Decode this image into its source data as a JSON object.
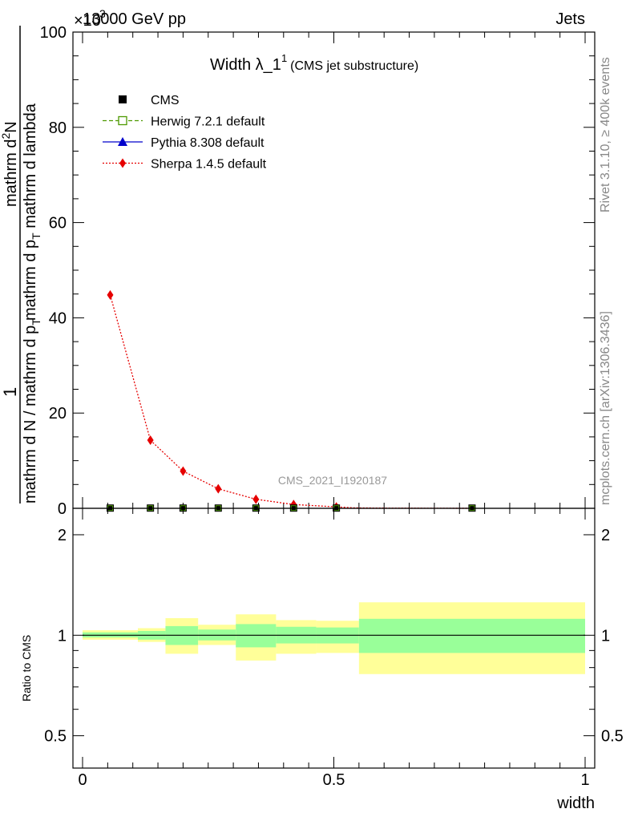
{
  "header": {
    "energy": "13000 GeV pp",
    "process": "Jets",
    "exponent": "×10",
    "exponent_power": "3"
  },
  "side": {
    "rivet": "Rivet 3.1.10, ≥ 400k events",
    "mcplots": "mcplots.cern.ch [arXiv:1306.3436]"
  },
  "chart_data": {
    "title": "Width λ_1",
    "title_sup": "1",
    "title_note": "(CMS jet substructure)",
    "analysis_id": "CMS_2021_I1920187",
    "type": "line",
    "ylabel_num": "1",
    "ylabel_main": "mathrm d N / mathrm d p",
    "ylabel_main_sub": "T",
    "ylabel_upper": "mathrm d",
    "ylabel_upper_sup": "2",
    "ylabel_upper_tail": "N",
    "ylabel_lower": "mathrm d p",
    "ylabel_lower_sub": "T",
    "ylabel_lower_tail": " mathrm d lambda",
    "xlabel": "width",
    "ratio_ylabel": "Ratio to CMS",
    "xlim": [
      0,
      1
    ],
    "ylim": [
      0,
      100
    ],
    "ratio_ylim": [
      0.4,
      2.4
    ],
    "x_ticks": [
      {
        "v": 0,
        "label": "0"
      },
      {
        "v": 0.5,
        "label": "0.5"
      },
      {
        "v": 1,
        "label": "1"
      }
    ],
    "y_ticks": [
      {
        "v": 0,
        "label": "0"
      },
      {
        "v": 20,
        "label": "20"
      },
      {
        "v": 40,
        "label": "40"
      },
      {
        "v": 60,
        "label": "60"
      },
      {
        "v": 80,
        "label": "80"
      },
      {
        "v": 100,
        "label": "100"
      }
    ],
    "ratio_ticks": [
      {
        "v": 0.5,
        "label": "0.5"
      },
      {
        "v": 1,
        "label": "1"
      },
      {
        "v": 2,
        "label": "2"
      }
    ],
    "legend": [
      {
        "name": "CMS",
        "color": "#000000",
        "marker": "filled-square",
        "line": "none"
      },
      {
        "name": "Herwig 7.2.1 default",
        "color": "#4d9900",
        "marker": "open-square",
        "line": "dashed"
      },
      {
        "name": "Pythia 8.308 default",
        "color": "#0000cc",
        "marker": "triangle",
        "line": "solid"
      },
      {
        "name": "Sherpa 1.4.5 default",
        "color": "#e60000",
        "marker": "diamond",
        "line": "dotted"
      }
    ],
    "cms_x": [
      0.055,
      0.135,
      0.2,
      0.27,
      0.345,
      0.42,
      0.505,
      0.775
    ],
    "cms_y": [
      0.05,
      0.05,
      0.05,
      0.05,
      0.05,
      0.05,
      0.05,
      0.05
    ],
    "sherpa_x": [
      0.055,
      0.135,
      0.2,
      0.27,
      0.345,
      0.42,
      0.505,
      0.54,
      0.6,
      0.7,
      0.775
    ],
    "sherpa_y": [
      44.8,
      14.3,
      7.8,
      4.1,
      1.9,
      0.8,
      0.3,
      0.1,
      0.05,
      0.02,
      0.01
    ],
    "ratio_bins": [
      {
        "x0": 0.0,
        "x1": 0.11,
        "inner": [
          0.985,
          1.02
        ],
        "outer": [
          0.97,
          1.035
        ]
      },
      {
        "x0": 0.11,
        "x1": 0.165,
        "inner": [
          0.97,
          1.03
        ],
        "outer": [
          0.955,
          1.05
        ]
      },
      {
        "x0": 0.165,
        "x1": 0.23,
        "inner": [
          0.935,
          1.065
        ],
        "outer": [
          0.88,
          1.125
        ]
      },
      {
        "x0": 0.23,
        "x1": 0.305,
        "inner": [
          0.965,
          1.04
        ],
        "outer": [
          0.935,
          1.075
        ]
      },
      {
        "x0": 0.305,
        "x1": 0.385,
        "inner": [
          0.92,
          1.08
        ],
        "outer": [
          0.84,
          1.155
        ]
      },
      {
        "x0": 0.385,
        "x1": 0.465,
        "inner": [
          0.945,
          1.06
        ],
        "outer": [
          0.88,
          1.11
        ]
      },
      {
        "x0": 0.465,
        "x1": 0.55,
        "inner": [
          0.945,
          1.055
        ],
        "outer": [
          0.885,
          1.105
        ]
      },
      {
        "x0": 0.55,
        "x1": 1.0,
        "inner": [
          0.885,
          1.12
        ],
        "outer": [
          0.765,
          1.255
        ]
      }
    ],
    "colors": {
      "band_inner": "#99ff99",
      "band_outer": "#ffff99",
      "ratio_line": "#000000"
    }
  }
}
